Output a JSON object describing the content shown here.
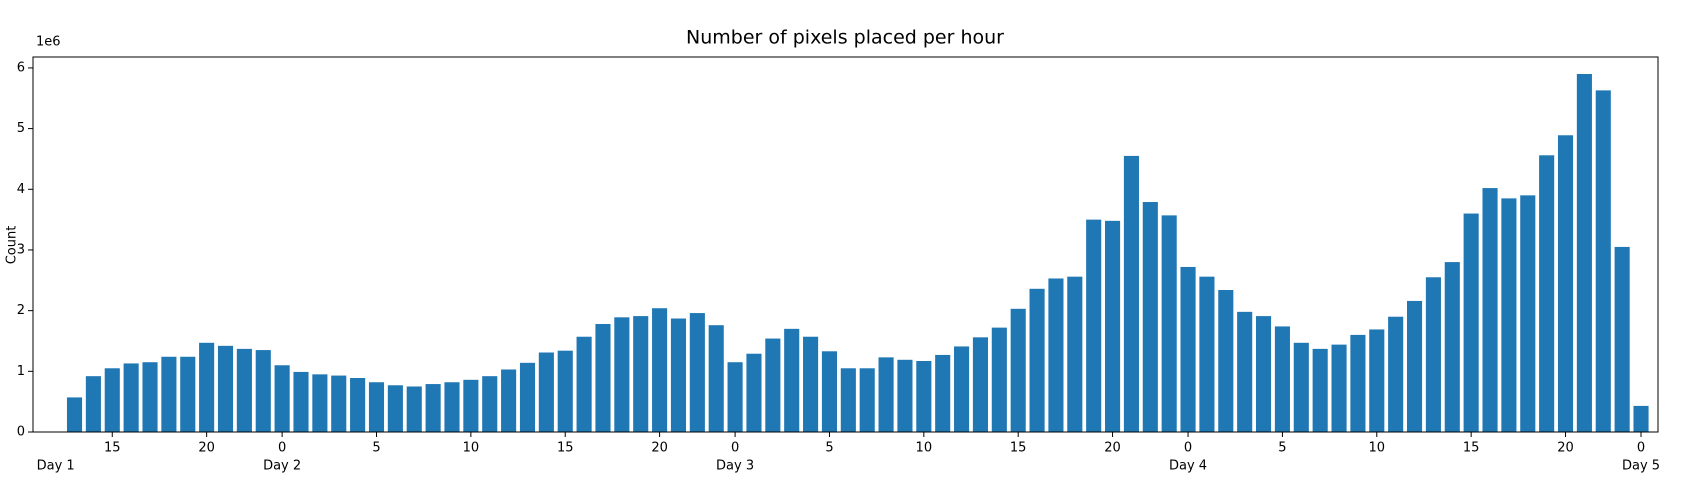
{
  "chart_data": {
    "type": "bar",
    "title": "Number of pixels placed per hour",
    "y_label": "Count",
    "y_offset_label": "1e6",
    "color": "#1f77b4",
    "x": [
      13,
      14,
      15,
      16,
      17,
      18,
      19,
      20,
      21,
      22,
      23,
      24,
      25,
      26,
      27,
      28,
      29,
      30,
      31,
      32,
      33,
      34,
      35,
      36,
      37,
      38,
      39,
      40,
      41,
      42,
      43,
      44,
      45,
      46,
      47,
      48,
      49,
      50,
      51,
      52,
      53,
      54,
      55,
      56,
      57,
      58,
      59,
      60,
      61,
      62,
      63,
      64,
      65,
      66,
      67,
      68,
      69,
      70,
      71,
      72,
      73,
      74,
      75,
      76,
      77,
      78,
      79,
      80,
      81,
      82,
      83,
      84,
      85,
      86,
      87,
      88,
      89,
      90,
      91,
      92,
      93,
      94,
      95,
      96
    ],
    "values": [
      0.57,
      0.92,
      1.05,
      1.13,
      1.15,
      1.24,
      1.24,
      1.47,
      1.42,
      1.37,
      1.35,
      1.1,
      0.99,
      0.95,
      0.93,
      0.89,
      0.82,
      0.77,
      0.75,
      0.79,
      0.82,
      0.86,
      0.92,
      1.03,
      1.14,
      1.31,
      1.34,
      1.57,
      1.78,
      1.89,
      1.91,
      2.04,
      1.87,
      1.96,
      1.76,
      1.15,
      1.29,
      1.54,
      1.7,
      1.57,
      1.33,
      1.05,
      1.05,
      1.23,
      1.19,
      1.17,
      1.27,
      1.41,
      1.56,
      1.72,
      2.03,
      2.36,
      2.53,
      2.56,
      3.5,
      3.48,
      4.55,
      3.79,
      3.57,
      2.72,
      2.56,
      2.34,
      1.98,
      1.91,
      1.74,
      1.47,
      1.37,
      1.44,
      1.6,
      1.69,
      1.9,
      2.16,
      2.55,
      2.8,
      3.6,
      4.02,
      3.85,
      3.9,
      4.56,
      4.89,
      5.9,
      5.63,
      3.05,
      0.43
    ],
    "bar_width": 0.8,
    "xlim": [
      10.8,
      96.9
    ],
    "xticks": [
      15,
      20,
      {
        "value": 24,
        "label": "0"
      },
      {
        "value": 29,
        "label": "5"
      },
      {
        "value": 34,
        "label": "10"
      },
      {
        "value": 39,
        "label": "15"
      },
      {
        "value": 44,
        "label": "20"
      },
      {
        "value": 48,
        "label": "0"
      },
      {
        "value": 53,
        "label": "5"
      },
      {
        "value": 58,
        "label": "10"
      },
      {
        "value": 63,
        "label": "15"
      },
      {
        "value": 68,
        "label": "20"
      },
      {
        "value": 72,
        "label": "0"
      },
      {
        "value": 77,
        "label": "5"
      },
      {
        "value": 82,
        "label": "10"
      },
      {
        "value": 87,
        "label": "15"
      },
      {
        "value": 92,
        "label": "20"
      },
      {
        "value": 96,
        "label": "0"
      }
    ],
    "day_ticks": [
      {
        "value": 12,
        "label": "Day 1"
      },
      {
        "value": 24,
        "label": "Day 2"
      },
      {
        "value": 48,
        "label": "Day 3"
      },
      {
        "value": 72,
        "label": "Day 4"
      },
      {
        "value": 96,
        "label": "Day 5"
      }
    ],
    "ylim": [
      0,
      6.18
    ],
    "yticks": [
      0,
      1,
      2,
      3,
      4,
      5,
      6
    ]
  }
}
